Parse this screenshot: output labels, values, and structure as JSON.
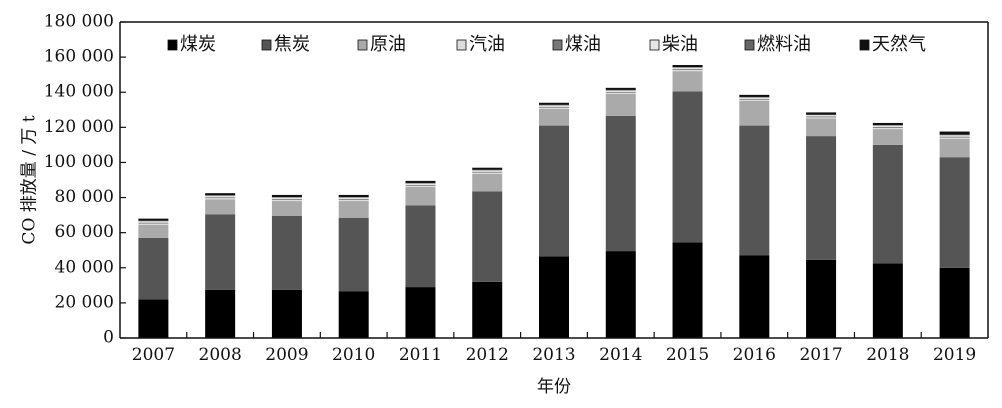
{
  "chart_data": {
    "type": "bar",
    "stacked": true,
    "title": "",
    "xlabel": "年份",
    "ylabel": "CO 排放量 / 万 t",
    "ylim": [
      0,
      180000
    ],
    "yticks": [
      0,
      20000,
      40000,
      60000,
      80000,
      100000,
      120000,
      140000,
      160000,
      180000
    ],
    "ytick_labels": [
      "0",
      "20 000",
      "40 000",
      "60 000",
      "80 000",
      "100 000",
      "120 000",
      "140 000",
      "160 000",
      "180 000"
    ],
    "categories": [
      "2007",
      "2008",
      "2009",
      "2010",
      "2011",
      "2012",
      "2013",
      "2014",
      "2015",
      "2016",
      "2017",
      "2018",
      "2019"
    ],
    "legend_position": "top",
    "grid": false,
    "series": [
      {
        "name": "煤炭",
        "color": "#000000",
        "values": [
          22000,
          27500,
          27500,
          26500,
          29000,
          32000,
          46500,
          49500,
          54500,
          47000,
          44500,
          42500,
          40000
        ]
      },
      {
        "name": "焦炭",
        "color": "#555555",
        "values": [
          35000,
          43000,
          42000,
          42000,
          46500,
          51500,
          74500,
          77000,
          86000,
          74000,
          70500,
          67500,
          63000
        ]
      },
      {
        "name": "原油",
        "color": "#aaaaaa",
        "values": [
          7500,
          8500,
          8500,
          9500,
          10500,
          10000,
          9500,
          12500,
          11500,
          14000,
          10000,
          9000,
          10500
        ]
      },
      {
        "name": "汽油",
        "color": "#dddddd",
        "values": [
          700,
          700,
          700,
          700,
          700,
          700,
          700,
          700,
          700,
          700,
          700,
          700,
          700
        ]
      },
      {
        "name": "煤油",
        "color": "#777777",
        "values": [
          500,
          500,
          500,
          500,
          500,
          500,
          500,
          500,
          500,
          500,
          500,
          500,
          500
        ]
      },
      {
        "name": "柴油",
        "color": "#e6e6e6",
        "values": [
          800,
          800,
          800,
          800,
          800,
          800,
          800,
          800,
          800,
          800,
          800,
          800,
          800
        ]
      },
      {
        "name": "燃料油",
        "color": "#666666",
        "values": [
          300,
          300,
          300,
          300,
          300,
          300,
          300,
          300,
          300,
          300,
          300,
          300,
          300
        ]
      },
      {
        "name": "天然气",
        "color": "#111111",
        "values": [
          1200,
          1200,
          1200,
          1200,
          1200,
          1200,
          1200,
          1200,
          1200,
          1200,
          1200,
          1200,
          1800
        ]
      }
    ]
  }
}
